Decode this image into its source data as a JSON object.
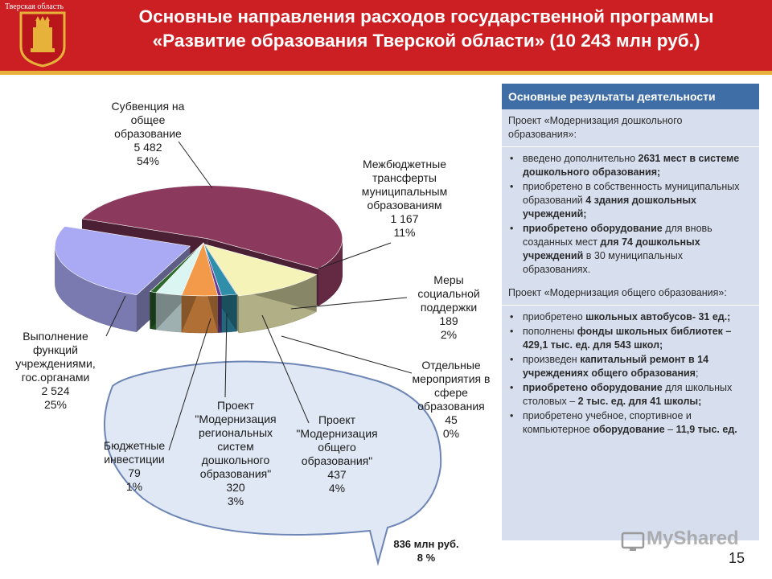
{
  "header": {
    "region": "Тверская область",
    "title_line1": "Основные направления расходов государственной программы",
    "title_line2": "«Развитие образования Тверской области» (10 243 млн руб.)"
  },
  "chart_data": {
    "type": "pie",
    "style": "3d-exploded",
    "slices": [
      {
        "label": "Субвенция на общее образование",
        "value": 5482,
        "percent": "54%",
        "color": "#8b3a5e"
      },
      {
        "label": "Межбюджетные трансферты муниципальным образованиям",
        "value": 1167,
        "percent": "11%",
        "color": "#f6f3b9"
      },
      {
        "label": "Меры социальной поддержки",
        "value": 189,
        "percent": "2%",
        "color": "#2f8fab"
      },
      {
        "label": "Отдельные мероприятия в сфере образования",
        "value": 45,
        "percent": "0%",
        "color": "#6c3a93"
      },
      {
        "label": "Проект \"Модернизация общего образования\"",
        "value": 437,
        "percent": "4%",
        "color": "#f39a4a"
      },
      {
        "label": "Проект \"Модернизация региональных систем дошкольного образования\"",
        "value": 320,
        "percent": "3%",
        "color": "#dbf5f3"
      },
      {
        "label": "Бюджетные инвестиции",
        "value": 79,
        "percent": "1%",
        "color": "#2b6a2b"
      },
      {
        "label": "Выполнение функций учреждениями, гос.органами",
        "value": 2524,
        "percent": "25%",
        "color": "#a9a9f4"
      }
    ],
    "labels": [
      {
        "lines": [
          "Субвенция на",
          "общее",
          "образование",
          "5 482",
          "54%"
        ]
      },
      {
        "lines": [
          "Межбюджетные",
          "трансферты",
          "муниципальным",
          "образованиям",
          "1 167",
          "11%"
        ]
      },
      {
        "lines": [
          "Меры",
          "социальной",
          "поддержки",
          "189",
          "2%"
        ]
      },
      {
        "lines": [
          "Отдельные",
          "мероприятия в",
          "сфере",
          "образования",
          "45",
          "0%"
        ]
      },
      {
        "lines": [
          "Проект",
          "\"Модернизация",
          "общего",
          "образования\"",
          "437",
          "4%"
        ]
      },
      {
        "lines": [
          "Проект",
          "\"Модернизация",
          "региональных",
          "систем",
          "дошкольного",
          "образования\"",
          "320",
          "3%"
        ]
      },
      {
        "lines": [
          "Бюджетные",
          "инвестиции",
          "79",
          "1%"
        ]
      },
      {
        "lines": [
          "Выполнение",
          "функций",
          "учреждениями,",
          "гос.органами",
          "2 524",
          "25%"
        ]
      }
    ],
    "callout_total": [
      "836 млн руб.",
      "8 %"
    ]
  },
  "panel": {
    "title": "Основные результаты деятельности",
    "project1": "Проект «Модернизация дошкольного образования»:",
    "project1_items": [
      "введено дополнительно 2631 мест в системе дошкольного образования;",
      "приобретено в собственность муниципальных образований 4 здания дошкольных учреждений;",
      "приобретено оборудование для вновь созданных мест для 74 дошкольных учреждений в 30 муниципальных образованиях."
    ],
    "project2": "Проект «Модернизация общего образования»:",
    "project2_items": [
      "приобретено школьных автобусов- 31 ед.;",
      "пополнены фонды школьных библиотек – 429,1 тыс. ед. для 543 школ;",
      "произведен капитальный ремонт в 14 учреждениях общего образования;",
      "приобретено оборудование для школьных столовых – 2 тыс. ед. для 41 школы;",
      "приобретено учебное, спортивное и компьютерное оборудование – 11,9 тыс. ед."
    ]
  },
  "page_number": "15",
  "watermark": "MyShared"
}
